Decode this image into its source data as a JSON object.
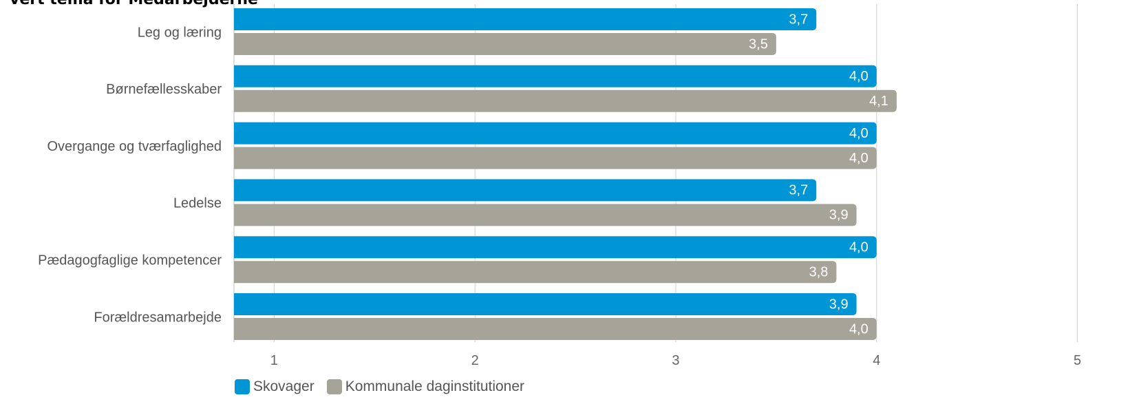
{
  "title": "vert tema for Medarbejderne",
  "chart_data": {
    "type": "bar",
    "orientation": "horizontal",
    "title": "vert tema for Medarbejderne",
    "categories": [
      "Leg og læring",
      "Børnefællesskaber",
      "Overgange og tværfaglighed",
      "Ledelse",
      "Pædagogfaglige kompetencer",
      "Forældresamarbejde"
    ],
    "series": [
      {
        "name": "Skovager",
        "values": [
          3.7,
          4.0,
          4.0,
          3.7,
          4.0,
          3.9
        ],
        "labels": [
          "3,7",
          "4,0",
          "4,0",
          "3,7",
          "4,0",
          "3,9"
        ],
        "color": "#0096d6"
      },
      {
        "name": "Kommunale daginstitutioner",
        "values": [
          3.5,
          4.1,
          4.0,
          3.9,
          3.8,
          4.0
        ],
        "labels": [
          "3,5",
          "4,1",
          "4,0",
          "3,9",
          "3,8",
          "4,0"
        ],
        "color": "#a6a498"
      }
    ],
    "xlim": [
      0.8,
      5
    ],
    "xticks": [
      "1",
      "2",
      "3",
      "4",
      "5"
    ],
    "grid": true,
    "legend_position": "bottom-left"
  }
}
